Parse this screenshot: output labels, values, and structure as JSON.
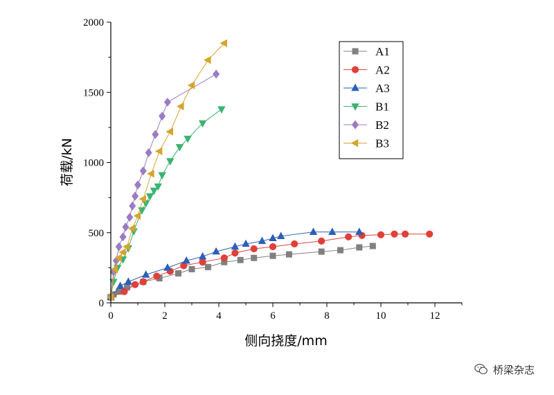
{
  "chart_data": {
    "type": "line",
    "xlabel": "侧向挠度/mm",
    "ylabel": "荷载/kN",
    "xlim": [
      0,
      13
    ],
    "ylim": [
      0,
      2000
    ],
    "xticks": [
      0,
      2,
      4,
      6,
      8,
      10,
      12
    ],
    "yticks": [
      0,
      500,
      1000,
      1500,
      2000
    ],
    "legend_position": "top-right",
    "series": [
      {
        "name": "A1",
        "color": "#808080",
        "marker": "square",
        "x": [
          0,
          0.1,
          0.3,
          0.6,
          1.2,
          1.8,
          2.5,
          3.0,
          3.6,
          4.2,
          4.8,
          5.3,
          6.0,
          6.6,
          7.8,
          8.5,
          9.2,
          9.7
        ],
        "y": [
          40,
          60,
          80,
          110,
          150,
          175,
          210,
          240,
          255,
          290,
          305,
          320,
          335,
          345,
          365,
          375,
          395,
          405
        ]
      },
      {
        "name": "A2",
        "color": "#e0403a",
        "marker": "circle",
        "x": [
          0,
          0.5,
          0.9,
          1.2,
          1.7,
          2.2,
          2.7,
          3.4,
          4.2,
          4.6,
          5.3,
          6.0,
          6.8,
          7.8,
          8.8,
          9.3,
          10.0,
          10.5,
          10.9,
          11.8
        ],
        "y": [
          40,
          80,
          130,
          150,
          190,
          225,
          265,
          290,
          320,
          355,
          385,
          400,
          420,
          440,
          470,
          480,
          485,
          490,
          490,
          490
        ]
      },
      {
        "name": "A3",
        "color": "#2e5fb8",
        "marker": "triangle-up",
        "x": [
          0,
          0.35,
          0.65,
          1.3,
          2.1,
          2.8,
          3.4,
          3.9,
          4.6,
          5.0,
          5.6,
          6.0,
          6.3,
          7.5,
          8.2,
          9.2
        ],
        "y": [
          40,
          120,
          150,
          200,
          250,
          300,
          330,
          365,
          400,
          420,
          440,
          460,
          475,
          505,
          505,
          505
        ]
      },
      {
        "name": "B1",
        "color": "#3cb371",
        "marker": "triangle-down",
        "x": [
          0,
          0.1,
          0.25,
          0.45,
          0.65,
          0.85,
          1.15,
          1.3,
          1.45,
          1.6,
          1.75,
          1.9,
          2.2,
          2.55,
          2.85,
          3.4,
          4.1
        ],
        "y": [
          40,
          150,
          250,
          310,
          390,
          510,
          660,
          710,
          760,
          800,
          830,
          910,
          1010,
          1110,
          1170,
          1280,
          1380
        ]
      },
      {
        "name": "B2",
        "color": "#9b7cc2",
        "marker": "diamond",
        "x": [
          0,
          0.1,
          0.2,
          0.3,
          0.45,
          0.55,
          0.7,
          0.8,
          0.9,
          1.0,
          1.2,
          1.4,
          1.65,
          1.9,
          2.1,
          3.9
        ],
        "y": [
          40,
          220,
          300,
          400,
          470,
          540,
          610,
          690,
          760,
          840,
          940,
          1070,
          1200,
          1330,
          1430,
          1630
        ]
      },
      {
        "name": "B3",
        "color": "#d4a531",
        "marker": "triangle-left",
        "x": [
          0,
          0.15,
          0.3,
          0.45,
          0.6,
          0.8,
          1.0,
          1.2,
          1.5,
          1.8,
          2.2,
          2.6,
          3.0,
          3.6,
          4.2
        ],
        "y": [
          40,
          240,
          320,
          360,
          400,
          530,
          620,
          740,
          920,
          1080,
          1220,
          1400,
          1550,
          1730,
          1850
        ]
      }
    ]
  },
  "watermark": {
    "text": "桥梁杂志",
    "icon": "wechat-icon"
  }
}
